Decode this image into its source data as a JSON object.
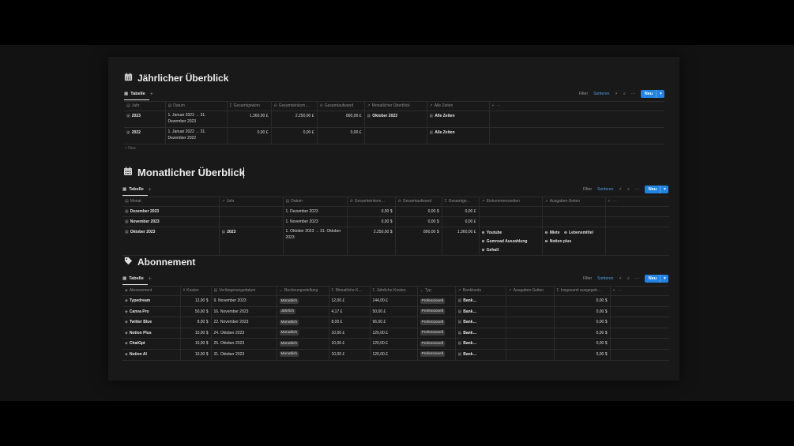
{
  "colors": {
    "accent": "#2383e2",
    "sort_link": "#4d9de6",
    "background": "#191919"
  },
  "yearly": {
    "title": "Jährlicher Überblick",
    "tab": "Tabelle",
    "toolbar": {
      "filter": "Filter",
      "sort": "Sortieren",
      "new": "Neu"
    },
    "columns": [
      "Jahr",
      "Datum",
      "Gesamtgewinn",
      "Gesamteinkom…",
      "Gesamtaufwand",
      "Monatlicher Überblick",
      "Alle Zeiten"
    ],
    "rows": [
      {
        "jahr": "2023",
        "datum": "1. Januar 2023 → 31. Dezember 2023",
        "gewinn": "1.360,00 £",
        "einkommen": "2.250,00 £",
        "aufwand": "890,00 £",
        "monat": "Oktober 2023",
        "alle": "Alle Zeiten"
      },
      {
        "jahr": "2022",
        "datum": "1. Januar 2022 → 31. Dezember 2022",
        "gewinn": "0,00 £",
        "einkommen": "0,00 £",
        "aufwand": "0,00 £",
        "monat": "",
        "alle": "Alle Zeiten"
      }
    ],
    "new_row": "+ Neu"
  },
  "monthly": {
    "title": "Monatlicher Überblick",
    "tab": "Tabelle",
    "toolbar": {
      "filter": "Filter",
      "sort": "Sortieren",
      "new": "Neu"
    },
    "columns": [
      "Monat",
      "Jahr",
      "Datum",
      "Gesamteinkom…",
      "Gesamtaufwand",
      "Gesamtge…",
      "Einkommensseiten",
      "Ausgaben-Seiten"
    ],
    "rows": [
      {
        "monat": "Dezember 2023",
        "jahr": "",
        "datum": "1. Dezember 2023",
        "einkommen": "0,00 $",
        "aufwand": "0,00 $",
        "gewinn": "0,00 £"
      },
      {
        "monat": "November 2023",
        "jahr": "",
        "datum": "1. November 2023",
        "einkommen": "0,00 $",
        "aufwand": "0,00 $",
        "gewinn": "0,00 £"
      },
      {
        "monat": "Oktober 2023",
        "jahr": "2023",
        "datum": "1. Oktober 2023 → 31. Oktober 2023",
        "einkommen": "2.250,00 $",
        "aufwand": "890,00 $",
        "gewinn": "1.360,00 £",
        "einnahmen": [
          "Youtube",
          "Gumroad Auszahlung",
          "Gehalt"
        ],
        "ausgaben": [
          [
            "Miete",
            "Lebensmittel"
          ],
          [
            "Notion plus"
          ]
        ]
      }
    ]
  },
  "abos": {
    "title": "Abonnement",
    "tab": "Tabelle",
    "toolbar": {
      "filter": "Filter",
      "sort": "Sortieren",
      "new": "Neu"
    },
    "columns": [
      "Abonnement",
      "Kosten",
      "Verlängerungsdatum",
      "Rechnungsstellung",
      "Monatliche K…",
      "Jährliche Kosten",
      "Typ",
      "Bankkonto",
      "Ausgaben-Seiten",
      "Insgesamt ausgegeb…"
    ],
    "rows": [
      {
        "name": "Typedream",
        "kosten": "12,00 $",
        "datum": "9. November 2023",
        "rechnung": "Monatlich",
        "monat": "12,00 £",
        "jahr": "144,00 £",
        "typ": "Professionell",
        "bank": "Bank…",
        "total": "0,00 $"
      },
      {
        "name": "Canva Pro",
        "kosten": "50,00 $",
        "datum": "16. November 2023",
        "rechnung": "Jährlich",
        "monat": "4,17 £",
        "jahr": "50,00 £",
        "typ": "Professionell",
        "bank": "Bank…",
        "total": "0,00 $"
      },
      {
        "name": "Twitter Blue",
        "kosten": "8,00 $",
        "datum": "22. November 2023",
        "rechnung": "Monatlich",
        "monat": "8,00 £",
        "jahr": "96,00 £",
        "typ": "Professionell",
        "bank": "Bank…",
        "total": "0,00 $"
      },
      {
        "name": "Notion Plus",
        "kosten": "10,00 $",
        "datum": "24. Oktober 2023",
        "rechnung": "Monatlich",
        "monat": "10,00 £",
        "jahr": "120,00 £",
        "typ": "Professionell",
        "bank": "Bank…",
        "total": "0,00 $"
      },
      {
        "name": "ChatGpt",
        "kosten": "10,00 $",
        "datum": "25. Oktober 2023",
        "rechnung": "Monatlich",
        "monat": "10,00 £",
        "jahr": "120,00 £",
        "typ": "Professionell",
        "bank": "Bank…",
        "total": "0,00 $"
      },
      {
        "name": "Notion AI",
        "kosten": "10,00 $",
        "datum": "31. Oktober 2023",
        "rechnung": "Monatlich",
        "monat": "10,00 £",
        "jahr": "120,00 £",
        "typ": "Professionell",
        "bank": "Bank…",
        "total": "0,00 $"
      }
    ]
  }
}
